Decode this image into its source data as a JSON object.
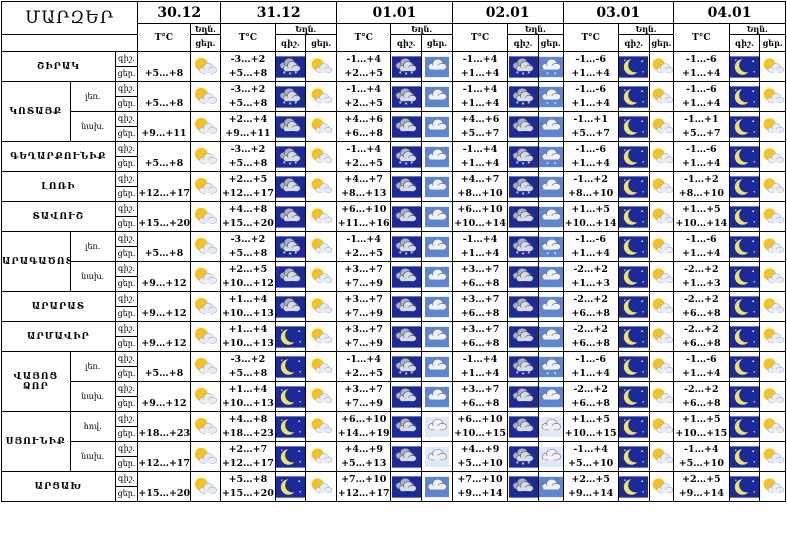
{
  "header": {
    "marz_label": "ՄԱՐԶԵՐ",
    "dates": [
      "30.12",
      "31.12",
      "01.01",
      "02.01",
      "03.01",
      "04.01"
    ],
    "temp_label": "T°C",
    "weather_label": "Եղն.",
    "day_label": "ցեր.",
    "night_label": "գիշ.",
    "daynight": [
      "գիշ.",
      "ցեր."
    ]
  },
  "rows": [
    {
      "region": "ՇԻՐԱԿ",
      "sub": "",
      "t3012": "+5…+8",
      "days": [
        {
          "n": "-3…+2",
          "d": "+5…+8",
          "ni": "snow-night",
          "di": "sun-cloud"
        },
        {
          "n": "-1…+4",
          "d": "+2…+5",
          "ni": "snow-night",
          "di": "cloud"
        },
        {
          "n": "-1…+4",
          "d": "+1…+4",
          "ni": "snow-night",
          "di": "snow-cloud"
        },
        {
          "n": "-1…-6",
          "d": "+1…+4",
          "ni": "moon",
          "di": "sun-cloud"
        },
        {
          "n": "-1…-6",
          "d": "+1…+4",
          "ni": "moon",
          "di": "sun-cloud"
        }
      ]
    },
    {
      "region": "ԿՈՏԱՅՔ",
      "sub": "լեռ.",
      "t3012": "+5…+8",
      "days": [
        {
          "n": "-3…+2",
          "d": "+5…+8",
          "ni": "snow-night",
          "di": "sun-cloud"
        },
        {
          "n": "-1…+4",
          "d": "+2…+5",
          "ni": "snow-night",
          "di": "cloud"
        },
        {
          "n": "-1…+4",
          "d": "+1…+4",
          "ni": "snow-night",
          "di": "snow-cloud"
        },
        {
          "n": "-1…-6",
          "d": "+1…+4",
          "ni": "moon",
          "di": "sun-cloud"
        },
        {
          "n": "-1…-6",
          "d": "+1…+4",
          "ni": "moon",
          "di": "sun-cloud"
        }
      ]
    },
    {
      "region": "",
      "sub": "նախ.",
      "t3012": "+9…+11",
      "days": [
        {
          "n": "+2…+4",
          "d": "+9…+11",
          "ni": "cloud-night",
          "di": "sun-cloud"
        },
        {
          "n": "+4…+6",
          "d": "+6…+8",
          "ni": "cloud-night",
          "di": "cloud"
        },
        {
          "n": "+4…+6",
          "d": "+5…+7",
          "ni": "cloud-night",
          "di": "cloud"
        },
        {
          "n": "-1…+1",
          "d": "+5…+7",
          "ni": "moon",
          "di": "sun-cloud"
        },
        {
          "n": "-1…+1",
          "d": "+5…+7",
          "ni": "moon",
          "di": "sun-cloud"
        }
      ]
    },
    {
      "region": "ԳԵՂԱՐՔՈՒՆԻՔ",
      "sub": "",
      "t3012": "+5…+8",
      "days": [
        {
          "n": "-3…+2",
          "d": "+5…+8",
          "ni": "snow-night",
          "di": "sun-cloud"
        },
        {
          "n": "-1…+4",
          "d": "+2…+5",
          "ni": "snow-night",
          "di": "cloud"
        },
        {
          "n": "-1…+4",
          "d": "+1…+4",
          "ni": "snow-night",
          "di": "snow-cloud"
        },
        {
          "n": "-1…-6",
          "d": "+1…+4",
          "ni": "moon",
          "di": "sun-cloud"
        },
        {
          "n": "-1…-6",
          "d": "+1…+4",
          "ni": "moon",
          "di": "sun-cloud"
        }
      ]
    },
    {
      "region": "ԼՈՌԻ",
      "sub": "",
      "t3012": "+12…+17",
      "days": [
        {
          "n": "+2…+5",
          "d": "+12…+17",
          "ni": "cloud-night",
          "di": "sun-cloud"
        },
        {
          "n": "+4…+7",
          "d": "+8…+13",
          "ni": "cloud-night",
          "di": "cloud"
        },
        {
          "n": "+4…+7",
          "d": "+8…+10",
          "ni": "snow-night",
          "di": "cloud"
        },
        {
          "n": "-1…+2",
          "d": "+8…+10",
          "ni": "moon",
          "di": "sun-cloud"
        },
        {
          "n": "-1…+2",
          "d": "+8…+10",
          "ni": "moon",
          "di": "sun-cloud"
        }
      ]
    },
    {
      "region": "ՏԱՎՈՒՇ",
      "sub": "",
      "t3012": "+15…+20",
      "days": [
        {
          "n": "+4…+8",
          "d": "+15…+20",
          "ni": "cloud-night",
          "di": "sun-cloud"
        },
        {
          "n": "+6…+10",
          "d": "+11…+16",
          "ni": "cloud-night",
          "di": "cloud"
        },
        {
          "n": "+6…+10",
          "d": "+10…+14",
          "ni": "cloud-night",
          "di": "cloud"
        },
        {
          "n": "+1…+5",
          "d": "+10…+14",
          "ni": "moon",
          "di": "sun-cloud"
        },
        {
          "n": "+1…+5",
          "d": "+10…+14",
          "ni": "moon",
          "di": "sun-cloud"
        }
      ]
    },
    {
      "region": "ԱՐԱԳԱԾՈՏՆ",
      "sub": "լեռ.",
      "t3012": "+5…+8",
      "days": [
        {
          "n": "-3…+2",
          "d": "+5…+8",
          "ni": "snow-night",
          "di": "sun-cloud"
        },
        {
          "n": "-1…+4",
          "d": "+2…+5",
          "ni": "snow-night",
          "di": "cloud"
        },
        {
          "n": "-1…+4",
          "d": "+1…+4",
          "ni": "snow-night",
          "di": "snow-cloud"
        },
        {
          "n": "-1…-6",
          "d": "+1…+4",
          "ni": "moon",
          "di": "sun-cloud"
        },
        {
          "n": "-1…-6",
          "d": "+1…+4",
          "ni": "moon",
          "di": "sun-cloud"
        }
      ]
    },
    {
      "region": "",
      "sub": "նախ.",
      "t3012": "+9…+12",
      "days": [
        {
          "n": "+2…+5",
          "d": "+10…+12",
          "ni": "cloud-night",
          "di": "sun-cloud"
        },
        {
          "n": "+3…+7",
          "d": "+7…+9",
          "ni": "cloud-night",
          "di": "cloud"
        },
        {
          "n": "+3…+7",
          "d": "+6…+8",
          "ni": "cloud-night",
          "di": "cloud"
        },
        {
          "n": "-2…+2",
          "d": "+1…+3",
          "ni": "moon",
          "di": "sun-cloud"
        },
        {
          "n": "-2…+2",
          "d": "+1…+3",
          "ni": "moon",
          "di": "sun-cloud"
        }
      ]
    },
    {
      "region": "ԱՐԱՐԱՏ",
      "sub": "",
      "t3012": "+9…+12",
      "days": [
        {
          "n": "+1…+4",
          "d": "+10…+13",
          "ni": "cloud-night",
          "di": "sun-cloud"
        },
        {
          "n": "+3…+7",
          "d": "+7…+9",
          "ni": "cloud-night",
          "di": "cloud"
        },
        {
          "n": "+3…+7",
          "d": "+6…+8",
          "ni": "cloud-night",
          "di": "cloud"
        },
        {
          "n": "-2…+2",
          "d": "+6…+8",
          "ni": "moon",
          "di": "sun-cloud"
        },
        {
          "n": "-2…+2",
          "d": "+6…+8",
          "ni": "moon",
          "di": "sun-cloud"
        }
      ]
    },
    {
      "region": "ԱՐՄԱՎԻՐ",
      "sub": "",
      "t3012": "+9…+12",
      "days": [
        {
          "n": "+1…+4",
          "d": "+10…+13",
          "ni": "moon",
          "di": "sun-cloud"
        },
        {
          "n": "+3…+7",
          "d": "+7…+9",
          "ni": "cloud-night",
          "di": "cloud"
        },
        {
          "n": "+3…+7",
          "d": "+6…+8",
          "ni": "cloud-night",
          "di": "cloud"
        },
        {
          "n": "-2…+2",
          "d": "+6…+8",
          "ni": "moon",
          "di": "sun-cloud"
        },
        {
          "n": "-2…+2",
          "d": "+6…+8",
          "ni": "moon",
          "di": "sun-cloud"
        }
      ]
    },
    {
      "region": "ՎԱՅՈՑ ՁՈՐ",
      "sub": "լեռ.",
      "t3012": "+5…+8",
      "days": [
        {
          "n": "-3…+2",
          "d": "+5…+8",
          "ni": "moon",
          "di": "sun-cloud"
        },
        {
          "n": "-1…+4",
          "d": "+2…+5",
          "ni": "snow-night",
          "di": "cloud"
        },
        {
          "n": "-1…+4",
          "d": "+1…+4",
          "ni": "snow-night",
          "di": "snow-cloud"
        },
        {
          "n": "-1…-6",
          "d": "+1…+4",
          "ni": "moon",
          "di": "sun-cloud"
        },
        {
          "n": "-1…-6",
          "d": "+1…+4",
          "ni": "moon",
          "di": "sun-cloud"
        }
      ]
    },
    {
      "region": "",
      "sub": "նախ.",
      "t3012": "+9…+12",
      "days": [
        {
          "n": "+1…+4",
          "d": "+10…+13",
          "ni": "moon",
          "di": "sun-cloud"
        },
        {
          "n": "+3…+7",
          "d": "+7…+9",
          "ni": "cloud-night",
          "di": "cloud"
        },
        {
          "n": "+3…+7",
          "d": "+6…+8",
          "ni": "cloud-night",
          "di": "cloud"
        },
        {
          "n": "-2…+2",
          "d": "+6…+8",
          "ni": "moon",
          "di": "sun-cloud"
        },
        {
          "n": "-2…+2",
          "d": "+6…+8",
          "ni": "moon",
          "di": "sun-cloud"
        }
      ]
    },
    {
      "region": "ՍՅՈՒՆԻՔ",
      "sub": "հով.",
      "t3012": "+18…+23",
      "days": [
        {
          "n": "+4…+8",
          "d": "+18…+23",
          "ni": "moon",
          "di": "sun-cloud"
        },
        {
          "n": "+6…+10",
          "d": "+14…+19",
          "ni": "cloud-night",
          "di": "cloud-light"
        },
        {
          "n": "+6…+10",
          "d": "+10…+15",
          "ni": "cloud-night",
          "di": "cloud-light"
        },
        {
          "n": "+1…+5",
          "d": "+10…+15",
          "ni": "moon",
          "di": "sun-cloud"
        },
        {
          "n": "+1…+5",
          "d": "+10…+15",
          "ni": "moon",
          "di": "sun-cloud"
        }
      ]
    },
    {
      "region": "",
      "sub": "նախ.",
      "t3012": "+12…+17",
      "days": [
        {
          "n": "+2…+7",
          "d": "+12…+17",
          "ni": "moon",
          "di": "sun-cloud"
        },
        {
          "n": "+4…+9",
          "d": "+5…+13",
          "ni": "cloud-night",
          "di": "cloud-light"
        },
        {
          "n": "+4…+9",
          "d": "+5…+10",
          "ni": "snow-night",
          "di": "cloud-light"
        },
        {
          "n": "-1…+4",
          "d": "+5…+10",
          "ni": "moon",
          "di": "sun-cloud"
        },
        {
          "n": "-1…+4",
          "d": "+5…+10",
          "ni": "moon",
          "di": "sun-cloud"
        }
      ]
    },
    {
      "region": "ԱՐՑԱԽ",
      "sub": "",
      "t3012": "+15…+20",
      "days": [
        {
          "n": "+5…+8",
          "d": "+15…+20",
          "ni": "moon",
          "di": "sun-cloud"
        },
        {
          "n": "+7…+10",
          "d": "+12…+17",
          "ni": "cloud-night",
          "di": "cloud"
        },
        {
          "n": "+7…+10",
          "d": "+9…+14",
          "ni": "cloud-night",
          "di": "cloud"
        },
        {
          "n": "+2…+5",
          "d": "+9…+14",
          "ni": "moon",
          "di": "sun-cloud"
        },
        {
          "n": "+2…+5",
          "d": "+9…+14",
          "ni": "moon",
          "di": "sun-cloud"
        }
      ]
    }
  ],
  "icon_colors": {
    "night_bg": "#1a2a9a",
    "sky_bg": "#5b86d6",
    "sun": "#f7c21a",
    "moon": "#f2e35a",
    "cloud": "#d9d9d9"
  }
}
